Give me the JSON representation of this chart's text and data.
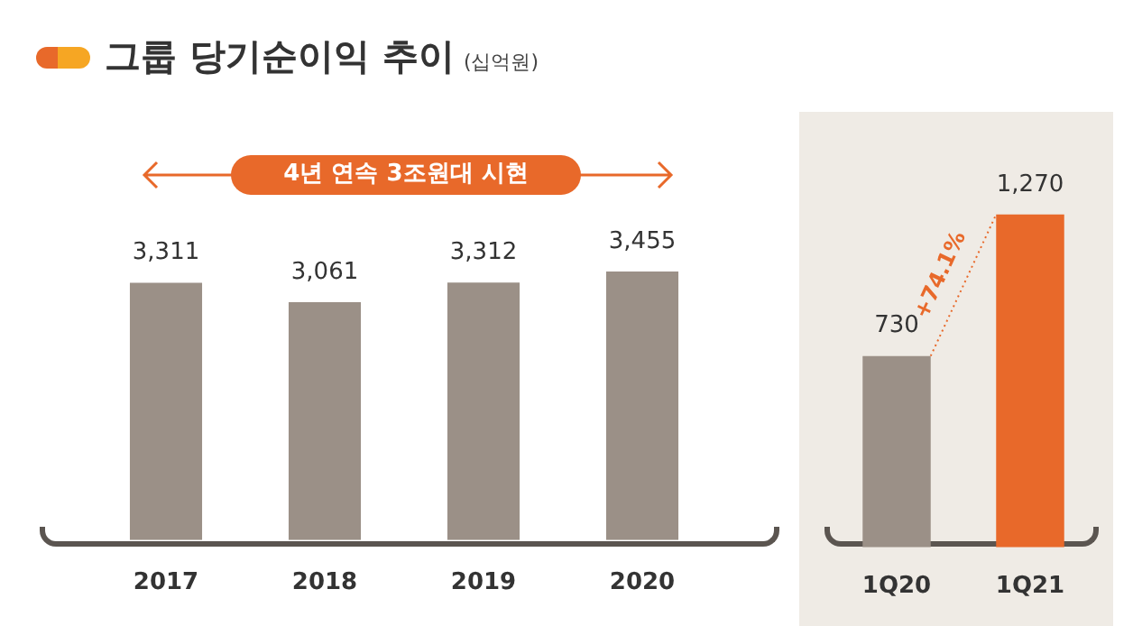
{
  "chart_data": [
    {
      "type": "bar",
      "title": "그룹 당기순이익 추이",
      "subtitle": "(십억원)",
      "categories": [
        "2017",
        "2018",
        "2019",
        "2020"
      ],
      "values": [
        3311,
        3061,
        3312,
        3455
      ],
      "color": "#9b9087",
      "value_labels": [
        "3,311",
        "3,061",
        "3,312",
        "3,455"
      ],
      "annotations": [
        "4년 연속 3조원대 시현"
      ]
    },
    {
      "type": "bar",
      "categories": [
        "1Q20",
        "1Q21"
      ],
      "values": [
        730,
        1270
      ],
      "colors": [
        "#9b9087",
        "#e8692a"
      ],
      "value_labels": [
        "730",
        "1,270"
      ],
      "annotations": [
        "+74.1%"
      ]
    }
  ]
}
